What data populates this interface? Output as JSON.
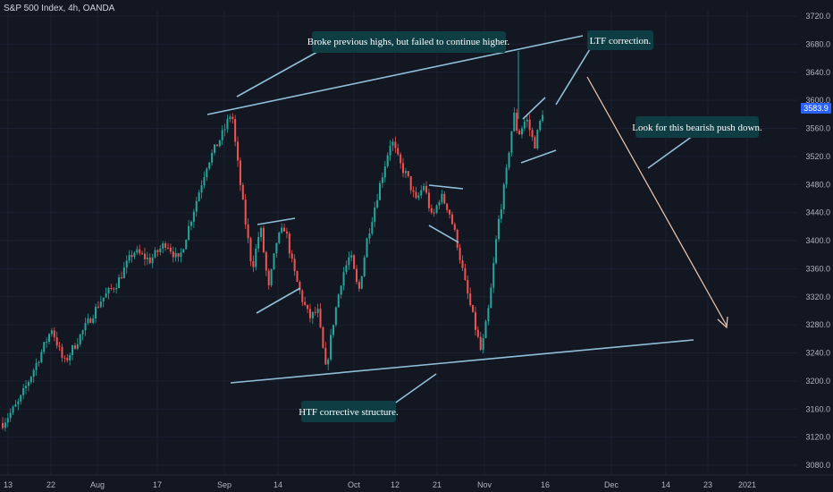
{
  "chart_title": "S&P 500 Index, 4h, OANDA",
  "chart_data": {
    "type": "candlestick",
    "title": "S&P 500 Index, 4h, OANDA",
    "instrument": "S&P 500 Index",
    "timeframe": "4h",
    "source": "OANDA",
    "y_ticks": [
      "3080.0",
      "3120.0",
      "3160.0",
      "3200.0",
      "3240.0",
      "3280.0",
      "3320.0",
      "3360.0",
      "3400.0",
      "3440.0",
      "3480.0",
      "3520.0",
      "3560.0",
      "3600.0",
      "3640.0",
      "3680.0",
      "3720.0"
    ],
    "ylim": [
      3070,
      3730
    ],
    "x_ticks": [
      "13",
      "22",
      "Aug",
      "17",
      "Sep",
      "14",
      "Oct",
      "12",
      "21",
      "Nov",
      "16",
      "Dec",
      "14",
      "23",
      "2021"
    ],
    "last_price": "3583.9",
    "price_path": [
      {
        "x": 1,
        "y": 3140
      },
      {
        "x": 5,
        "y": 3170
      },
      {
        "x": 10,
        "y": 3235
      },
      {
        "x": 13,
        "y": 3275
      },
      {
        "x": 16,
        "y": 3225
      },
      {
        "x": 20,
        "y": 3265
      },
      {
        "x": 25,
        "y": 3315
      },
      {
        "x": 29,
        "y": 3340
      },
      {
        "x": 33,
        "y": 3385
      },
      {
        "x": 37,
        "y": 3372
      },
      {
        "x": 41,
        "y": 3398
      },
      {
        "x": 44,
        "y": 3370
      },
      {
        "x": 48,
        "y": 3450
      },
      {
        "x": 51,
        "y": 3510
      },
      {
        "x": 55,
        "y": 3555
      },
      {
        "x": 57,
        "y": 3585
      },
      {
        "x": 58,
        "y": 3530
      },
      {
        "x": 60,
        "y": 3440
      },
      {
        "x": 62,
        "y": 3360
      },
      {
        "x": 64,
        "y": 3420
      },
      {
        "x": 66,
        "y": 3330
      },
      {
        "x": 68,
        "y": 3400
      },
      {
        "x": 70,
        "y": 3420
      },
      {
        "x": 72,
        "y": 3360
      },
      {
        "x": 74,
        "y": 3320
      },
      {
        "x": 76,
        "y": 3290
      },
      {
        "x": 78,
        "y": 3300
      },
      {
        "x": 80,
        "y": 3215
      },
      {
        "x": 82,
        "y": 3290
      },
      {
        "x": 84,
        "y": 3350
      },
      {
        "x": 86,
        "y": 3380
      },
      {
        "x": 88,
        "y": 3325
      },
      {
        "x": 90,
        "y": 3400
      },
      {
        "x": 93,
        "y": 3475
      },
      {
        "x": 96,
        "y": 3545
      },
      {
        "x": 98,
        "y": 3510
      },
      {
        "x": 100,
        "y": 3490
      },
      {
        "x": 102,
        "y": 3455
      },
      {
        "x": 104,
        "y": 3480
      },
      {
        "x": 106,
        "y": 3430
      },
      {
        "x": 108,
        "y": 3465
      },
      {
        "x": 110,
        "y": 3445
      },
      {
        "x": 112,
        "y": 3400
      },
      {
        "x": 114,
        "y": 3340
      },
      {
        "x": 116,
        "y": 3290
      },
      {
        "x": 118,
        "y": 3240
      },
      {
        "x": 120,
        "y": 3310
      },
      {
        "x": 122,
        "y": 3420
      },
      {
        "x": 124,
        "y": 3490
      },
      {
        "x": 125,
        "y": 3540
      },
      {
        "x": 126,
        "y": 3580
      },
      {
        "x": 127,
        "y": 3550
      },
      {
        "x": 129,
        "y": 3575
      },
      {
        "x": 131,
        "y": 3535
      },
      {
        "x": 133,
        "y": 3584
      }
    ],
    "annotations": [
      {
        "text": "Broke previous highs, but failed to continue higher."
      },
      {
        "text": "LTF correction."
      },
      {
        "text": "Look for this bearish push down."
      },
      {
        "text": "HTF corrective structure."
      }
    ],
    "colors": {
      "background": "#131722",
      "up_candle": "#26a69a",
      "down_candle": "#ef5350",
      "trendline": "#90bfd9",
      "callout_bg": "#0e3d43",
      "projection_arrow": "#f4c9b0",
      "price_label": "#2962ff"
    }
  }
}
